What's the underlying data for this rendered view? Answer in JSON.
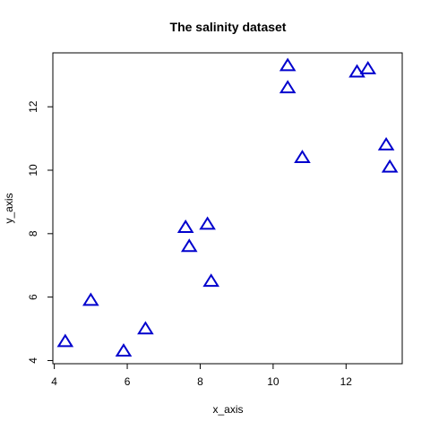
{
  "chart_data": {
    "type": "scatter",
    "title": "The salinity dataset",
    "xlabel": "x_axis",
    "ylabel": "y_axis",
    "xlim": [
      3.96,
      13.54
    ],
    "ylim": [
      3.9,
      13.7
    ],
    "xticks": [
      4,
      6,
      8,
      10,
      12
    ],
    "yticks": [
      4,
      6,
      8,
      10,
      12
    ],
    "grid": false,
    "marker": "triangle-open",
    "color": "#0000CD",
    "points": [
      {
        "x": 4.3,
        "y": 4.6
      },
      {
        "x": 5.0,
        "y": 5.9
      },
      {
        "x": 5.9,
        "y": 4.3
      },
      {
        "x": 6.5,
        "y": 5.0
      },
      {
        "x": 7.6,
        "y": 8.2
      },
      {
        "x": 7.7,
        "y": 7.6
      },
      {
        "x": 8.2,
        "y": 8.3
      },
      {
        "x": 8.3,
        "y": 6.5
      },
      {
        "x": 10.4,
        "y": 13.3
      },
      {
        "x": 10.4,
        "y": 12.6
      },
      {
        "x": 10.8,
        "y": 10.4
      },
      {
        "x": 12.3,
        "y": 13.1
      },
      {
        "x": 12.6,
        "y": 13.2
      },
      {
        "x": 13.1,
        "y": 10.8
      },
      {
        "x": 13.2,
        "y": 10.1
      }
    ]
  }
}
